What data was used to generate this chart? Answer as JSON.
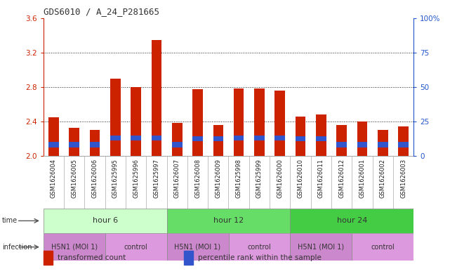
{
  "title": "GDS6010 / A_24_P281665",
  "samples": [
    "GSM1626004",
    "GSM1626005",
    "GSM1626006",
    "GSM1625995",
    "GSM1625996",
    "GSM1625997",
    "GSM1626007",
    "GSM1626008",
    "GSM1626009",
    "GSM1625998",
    "GSM1625999",
    "GSM1626000",
    "GSM1626010",
    "GSM1626011",
    "GSM1626012",
    "GSM1626001",
    "GSM1626002",
    "GSM1626003"
  ],
  "red_values": [
    2.45,
    2.33,
    2.3,
    2.9,
    2.8,
    3.34,
    2.38,
    2.77,
    2.36,
    2.78,
    2.78,
    2.76,
    2.46,
    2.48,
    2.36,
    2.4,
    2.3,
    2.34
  ],
  "blue_heights": [
    0.06,
    0.06,
    0.06,
    0.06,
    0.06,
    0.06,
    0.06,
    0.06,
    0.06,
    0.06,
    0.06,
    0.06,
    0.06,
    0.06,
    0.06,
    0.06,
    0.06,
    0.06
  ],
  "blue_positions": [
    2.1,
    2.1,
    2.1,
    2.18,
    2.18,
    2.18,
    2.1,
    2.17,
    2.17,
    2.18,
    2.18,
    2.18,
    2.17,
    2.17,
    2.1,
    2.1,
    2.1,
    2.1
  ],
  "ylim_left": [
    2.0,
    3.6
  ],
  "ylim_right": [
    0,
    100
  ],
  "yticks_left": [
    2.0,
    2.4,
    2.8,
    3.2,
    3.6
  ],
  "yticks_right": [
    0,
    25,
    50,
    75,
    100
  ],
  "ytick_labels_right": [
    "0",
    "25",
    "50",
    "75",
    "100%"
  ],
  "base": 2.0,
  "bar_color": "#cc2200",
  "blue_color": "#3355cc",
  "bar_width": 0.5,
  "time_groups": [
    {
      "label": "hour 6",
      "start": 0,
      "end": 6,
      "color": "#ccffcc"
    },
    {
      "label": "hour 12",
      "start": 6,
      "end": 12,
      "color": "#66dd66"
    },
    {
      "label": "hour 24",
      "start": 12,
      "end": 18,
      "color": "#44cc44"
    }
  ],
  "infection_groups": [
    {
      "label": "H5N1 (MOI 1)",
      "start": 0,
      "end": 3,
      "color": "#cc88cc"
    },
    {
      "label": "control",
      "start": 3,
      "end": 6,
      "color": "#dd99dd"
    },
    {
      "label": "H5N1 (MOI 1)",
      "start": 6,
      "end": 9,
      "color": "#cc88cc"
    },
    {
      "label": "control",
      "start": 9,
      "end": 12,
      "color": "#dd99dd"
    },
    {
      "label": "H5N1 (MOI 1)",
      "start": 12,
      "end": 15,
      "color": "#cc88cc"
    },
    {
      "label": "control",
      "start": 15,
      "end": 18,
      "color": "#dd99dd"
    }
  ],
  "xtick_bg": "#cccccc",
  "left_axis_color": "#cc2200",
  "right_axis_color": "#2255cc",
  "figure_bg": "#ffffff",
  "legend_items": [
    {
      "color": "#cc2200",
      "label": "transformed count"
    },
    {
      "color": "#3355cc",
      "label": "percentile rank within the sample"
    }
  ]
}
